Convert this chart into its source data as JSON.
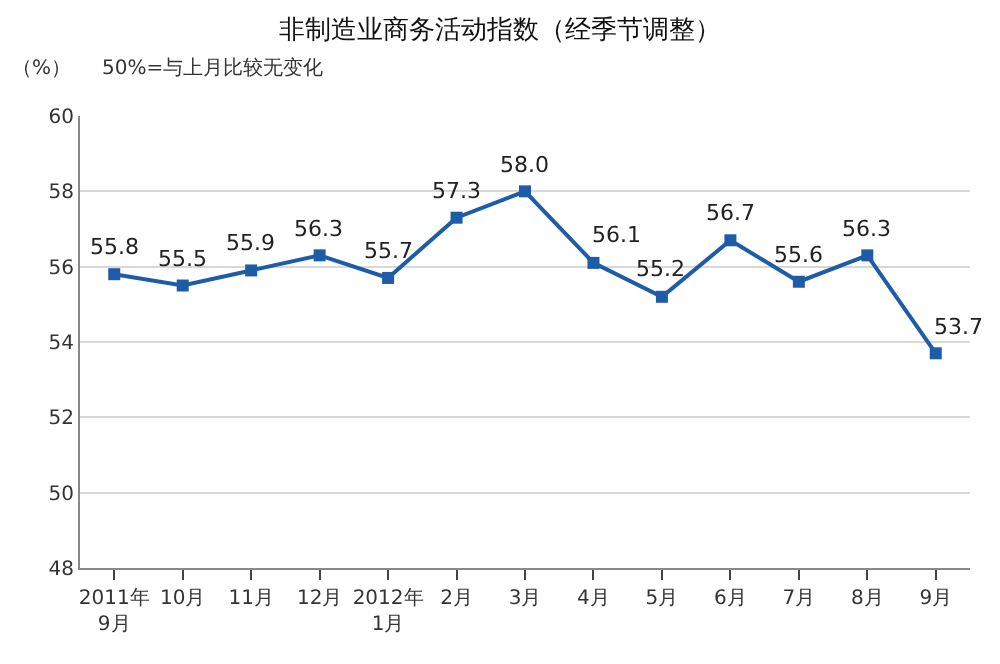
{
  "chart_data": {
    "type": "line",
    "title": "非制造业商务活动指数（经季节调整）",
    "annotations": [
      "（%）",
      "50%=与上月比较无变化"
    ],
    "categories": [
      "2011年\n9月",
      "10月",
      "11月",
      "12月",
      "2012年\n1月",
      "2月",
      "3月",
      "4月",
      "5月",
      "6月",
      "7月",
      "8月",
      "9月"
    ],
    "series": [
      {
        "color": "#1f5ca8",
        "values": [
          55.8,
          55.5,
          55.9,
          56.3,
          55.7,
          57.3,
          58.0,
          56.1,
          55.2,
          56.7,
          55.6,
          56.3,
          53.7
        ]
      }
    ],
    "ylim": [
      48,
      60
    ],
    "yticks": [
      48,
      50,
      52,
      54,
      56,
      58,
      60
    ],
    "value_labels": [
      "55.8",
      "55.5",
      "55.9",
      "56.3",
      "55.7",
      "57.3",
      "58.0",
      "56.1",
      "55.2",
      "56.7",
      "55.6",
      "56.3",
      "53.7"
    ],
    "grid": "y",
    "legend": false,
    "marker": "square",
    "line_style": "solid"
  }
}
